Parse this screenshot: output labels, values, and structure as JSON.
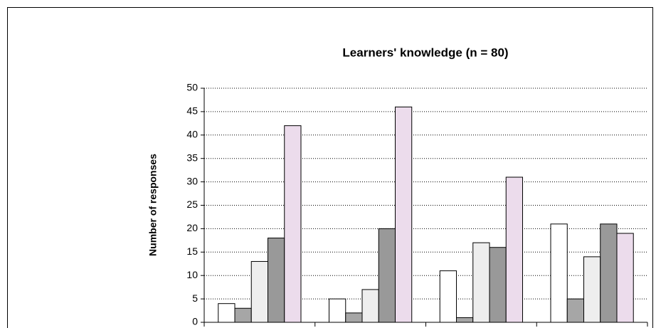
{
  "chart_data": {
    "type": "bar",
    "title": "Learners' knowledge (n = 80)",
    "y_label": "Number of responses",
    "series": [
      {
        "color": "#ffffff",
        "values": [
          4,
          5,
          11,
          21
        ]
      },
      {
        "color": "#a6a6a6",
        "values": [
          3,
          2,
          1,
          5
        ]
      },
      {
        "color": "#eeeeee",
        "values": [
          13,
          7,
          17,
          14
        ]
      },
      {
        "color": "#999999",
        "values": [
          18,
          20,
          16,
          21
        ]
      },
      {
        "color": "#ecdcec",
        "values": [
          42,
          46,
          31,
          19
        ]
      }
    ],
    "ylim": [
      0,
      50
    ],
    "yticks": [
      0,
      5,
      10,
      15,
      20,
      25,
      30,
      35,
      40,
      45,
      50
    ],
    "grid": true
  }
}
